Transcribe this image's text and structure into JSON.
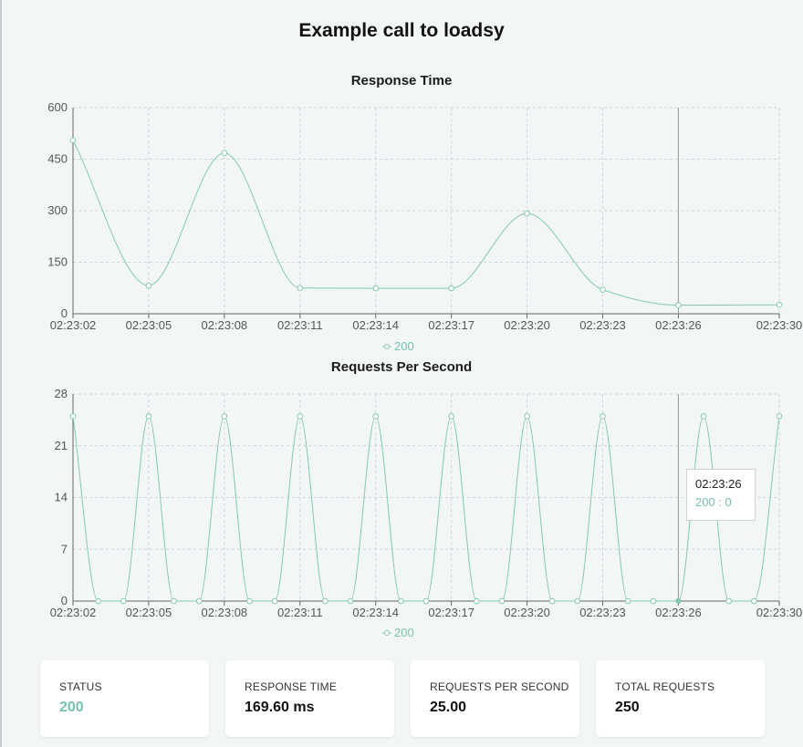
{
  "page": {
    "title": "Example call to loadsy"
  },
  "colors": {
    "series": "#86c9ad",
    "accent": "#79c2a5"
  },
  "x_ticks": [
    "02:23:02",
    "02:23:05",
    "02:23:08",
    "02:23:11",
    "02:23:14",
    "02:23:17",
    "02:23:20",
    "02:23:23",
    "02:23:26",
    "02:23:30"
  ],
  "chart_data": [
    {
      "type": "line",
      "title": "Response Time",
      "xlabel": "",
      "ylabel": "",
      "ylim": [
        0,
        600
      ],
      "y_ticks": [
        "0",
        "150",
        "300",
        "450",
        "600"
      ],
      "grid": true,
      "legend": "bottom",
      "x": [
        "02:23:02",
        "02:23:05",
        "02:23:08",
        "02:23:11",
        "02:23:14",
        "02:23:17",
        "02:23:20",
        "02:23:23",
        "02:23:26",
        "02:23:30"
      ],
      "series": [
        {
          "name": "200",
          "values": [
            505,
            82,
            468,
            75,
            74,
            74,
            292,
            70,
            25,
            26
          ]
        }
      ],
      "cursor_x": "02:23:26"
    },
    {
      "type": "line",
      "title": "Requests Per Second",
      "xlabel": "",
      "ylabel": "",
      "ylim": [
        0,
        28
      ],
      "y_ticks": [
        "0",
        "7",
        "14",
        "21",
        "28"
      ],
      "grid": true,
      "legend": "bottom",
      "x": [
        "02:23:02",
        "02:23:03",
        "02:23:04",
        "02:23:05",
        "02:23:06",
        "02:23:07",
        "02:23:08",
        "02:23:09",
        "02:23:10",
        "02:23:11",
        "02:23:12",
        "02:23:13",
        "02:23:14",
        "02:23:15",
        "02:23:16",
        "02:23:17",
        "02:23:18",
        "02:23:19",
        "02:23:20",
        "02:23:21",
        "02:23:22",
        "02:23:23",
        "02:23:24",
        "02:23:25",
        "02:23:26",
        "02:23:27",
        "02:23:28",
        "02:23:29",
        "02:23:30"
      ],
      "series": [
        {
          "name": "200",
          "values": [
            25,
            0,
            0,
            25,
            0,
            0,
            25,
            0,
            0,
            25,
            0,
            0,
            25,
            0,
            0,
            25,
            0,
            0,
            25,
            0,
            0,
            25,
            0,
            0,
            0,
            25,
            0,
            0,
            25
          ]
        }
      ],
      "cursor_x": "02:23:26",
      "tooltip": {
        "time": "02:23:26",
        "value": "200 : 0"
      }
    }
  ],
  "stats": [
    {
      "label": "STATUS",
      "value": "200"
    },
    {
      "label": "RESPONSE TIME",
      "value": "169.60 ms"
    },
    {
      "label": "REQUESTS PER SECOND",
      "value": "25.00"
    },
    {
      "label": "TOTAL REQUESTS",
      "value": "250"
    }
  ]
}
